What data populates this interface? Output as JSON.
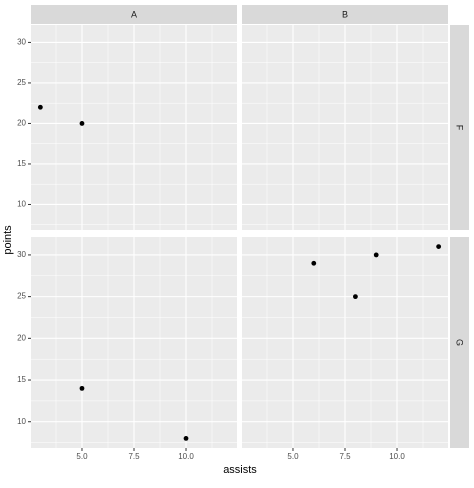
{
  "chart_data": {
    "type": "scatter",
    "xlabel": "assists",
    "ylabel": "points",
    "col_facets": [
      "A",
      "B"
    ],
    "row_facets": [
      "F",
      "G"
    ],
    "panels": [
      [
        {
          "x": [
            3,
            5
          ],
          "y": [
            22,
            20
          ]
        },
        {
          "x": [],
          "y": []
        }
      ],
      [
        {
          "x": [
            5,
            10
          ],
          "y": [
            14,
            8
          ]
        },
        {
          "x": [
            6,
            8,
            9,
            12
          ],
          "y": [
            29,
            25,
            30,
            31
          ]
        }
      ]
    ],
    "color": "#000000",
    "xlim": [
      2.55,
      12.45
    ],
    "ylim": [
      6.85,
      32.15
    ],
    "xticks": [
      {
        "value": 5,
        "label": "5.0"
      },
      7.5,
      {
        "value": 10,
        "label": "10.0"
      }
    ],
    "yticks": [
      10,
      15,
      20,
      25,
      30
    ],
    "grid": true
  }
}
